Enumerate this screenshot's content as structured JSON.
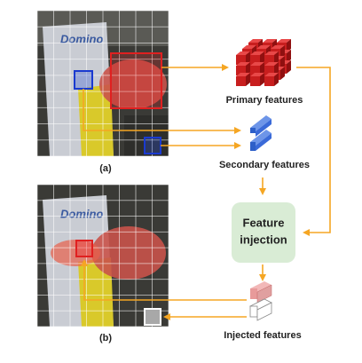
{
  "panel_a": {
    "label": "(a)"
  },
  "panel_b": {
    "label": "(b)"
  },
  "primary": {
    "label": "Primary features"
  },
  "secondary": {
    "label": "Secondary features"
  },
  "injection": {
    "lines": [
      "Feature",
      "injection"
    ]
  },
  "injected": {
    "label": "Injected features"
  }
}
